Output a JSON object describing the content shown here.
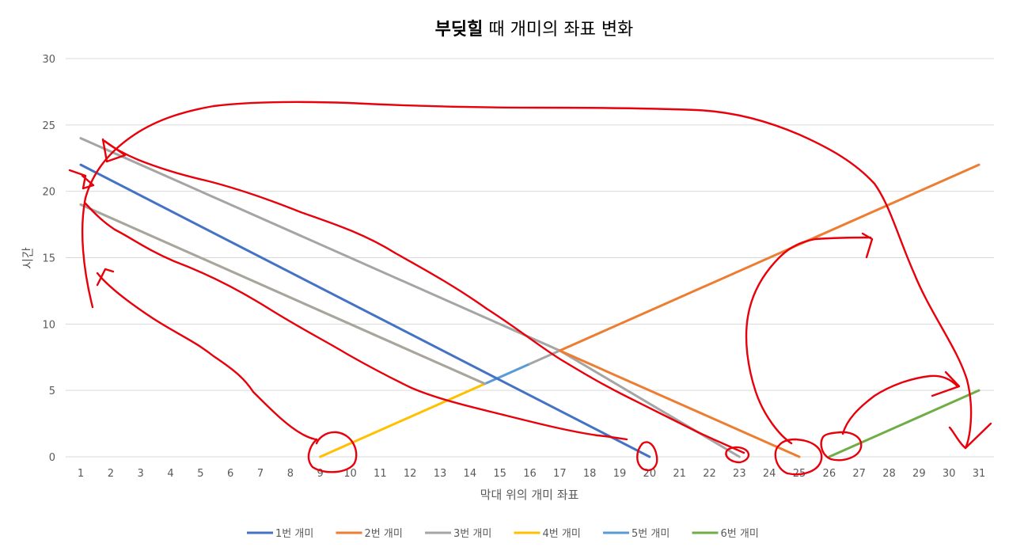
{
  "chart_data": {
    "type": "line",
    "title_main": "부딪힐",
    "title_rest": " 때 개미의 좌표 변화",
    "xlabel": "막대 위의 개미 좌표",
    "ylabel": "시간",
    "xlim": [
      1,
      31
    ],
    "ylim": [
      0,
      30
    ],
    "x_ticks": [
      1,
      2,
      3,
      4,
      5,
      6,
      7,
      8,
      9,
      10,
      11,
      12,
      13,
      14,
      15,
      16,
      17,
      18,
      19,
      20,
      21,
      22,
      23,
      24,
      25,
      26,
      27,
      28,
      29,
      30,
      31
    ],
    "y_ticks": [
      0,
      5,
      10,
      15,
      20,
      25,
      30
    ],
    "grid": true,
    "legend_position": "bottom",
    "series": [
      {
        "name": "1번 개미",
        "color": "#4472c4",
        "points": [
          [
            1,
            22
          ],
          [
            20,
            0
          ]
        ]
      },
      {
        "name": "2번 개미",
        "color": "#ed7d31",
        "points": [
          [
            31,
            22
          ],
          [
            17,
            8
          ],
          [
            25,
            0
          ]
        ]
      },
      {
        "name": "3번 개미",
        "color": "#a5a5a5",
        "points": [
          [
            1,
            24
          ],
          [
            17,
            8
          ],
          [
            23,
            0
          ]
        ]
      },
      {
        "name": "4번 개미",
        "color": "#ffc000",
        "points": [
          [
            1,
            19
          ],
          [
            14.5,
            5.5
          ],
          [
            9,
            0
          ]
        ]
      },
      {
        "name": "5번 개미",
        "color": "#5b9bd5",
        "points": [
          [
            1,
            19
          ],
          [
            14.5,
            5.5
          ],
          [
            16,
            7
          ]
        ]
      },
      {
        "name": "6번 개미",
        "color": "#70ad47",
        "points": [
          [
            26,
            0
          ],
          [
            31,
            5
          ]
        ]
      }
    ],
    "segment_colors_note": "",
    "segments": [
      {
        "series": 3,
        "color": "#ffc000",
        "from": [
          9,
          0
        ],
        "to": [
          14.5,
          5.5
        ]
      },
      {
        "series": 4,
        "color": "#5b9bd5",
        "from": [
          14.5,
          5.5
        ],
        "to": [
          16,
          7
        ]
      },
      {
        "series": 2,
        "color": "#a5a5a5",
        "from": [
          16,
          7
        ],
        "to": [
          17,
          8
        ]
      },
      {
        "series": 1,
        "color": "#ed7d31",
        "from": [
          17,
          8
        ],
        "to": [
          31,
          22
        ]
      },
      {
        "series": 0,
        "color": "#4472c4",
        "from": [
          1,
          22
        ],
        "to": [
          20,
          0
        ]
      },
      {
        "series": 2,
        "color": "#a5a5a5",
        "from": [
          1,
          24
        ],
        "to": [
          17,
          8
        ]
      },
      {
        "series": 2,
        "color": "#a5a5a5",
        "from": [
          17,
          8
        ],
        "to": [
          23,
          0
        ]
      },
      {
        "series": 1,
        "color": "#ed7d31",
        "from": [
          17,
          8
        ],
        "to": [
          25,
          0
        ]
      },
      {
        "series": 3,
        "color": "#ffc000",
        "from": [
          1,
          19
        ],
        "to": [
          14.5,
          5.5
        ]
      },
      {
        "series": 3,
        "color": "#a5a5a5",
        "from": [
          1,
          19
        ],
        "to": [
          14.5,
          5.5
        ]
      },
      {
        "series": 5,
        "color": "#70ad47",
        "from": [
          26,
          0
        ],
        "to": [
          31,
          5
        ]
      }
    ]
  },
  "annotations": {
    "description_color": "#e8000b",
    "kind": "red hand-drawn freehand strokes with arrows"
  }
}
